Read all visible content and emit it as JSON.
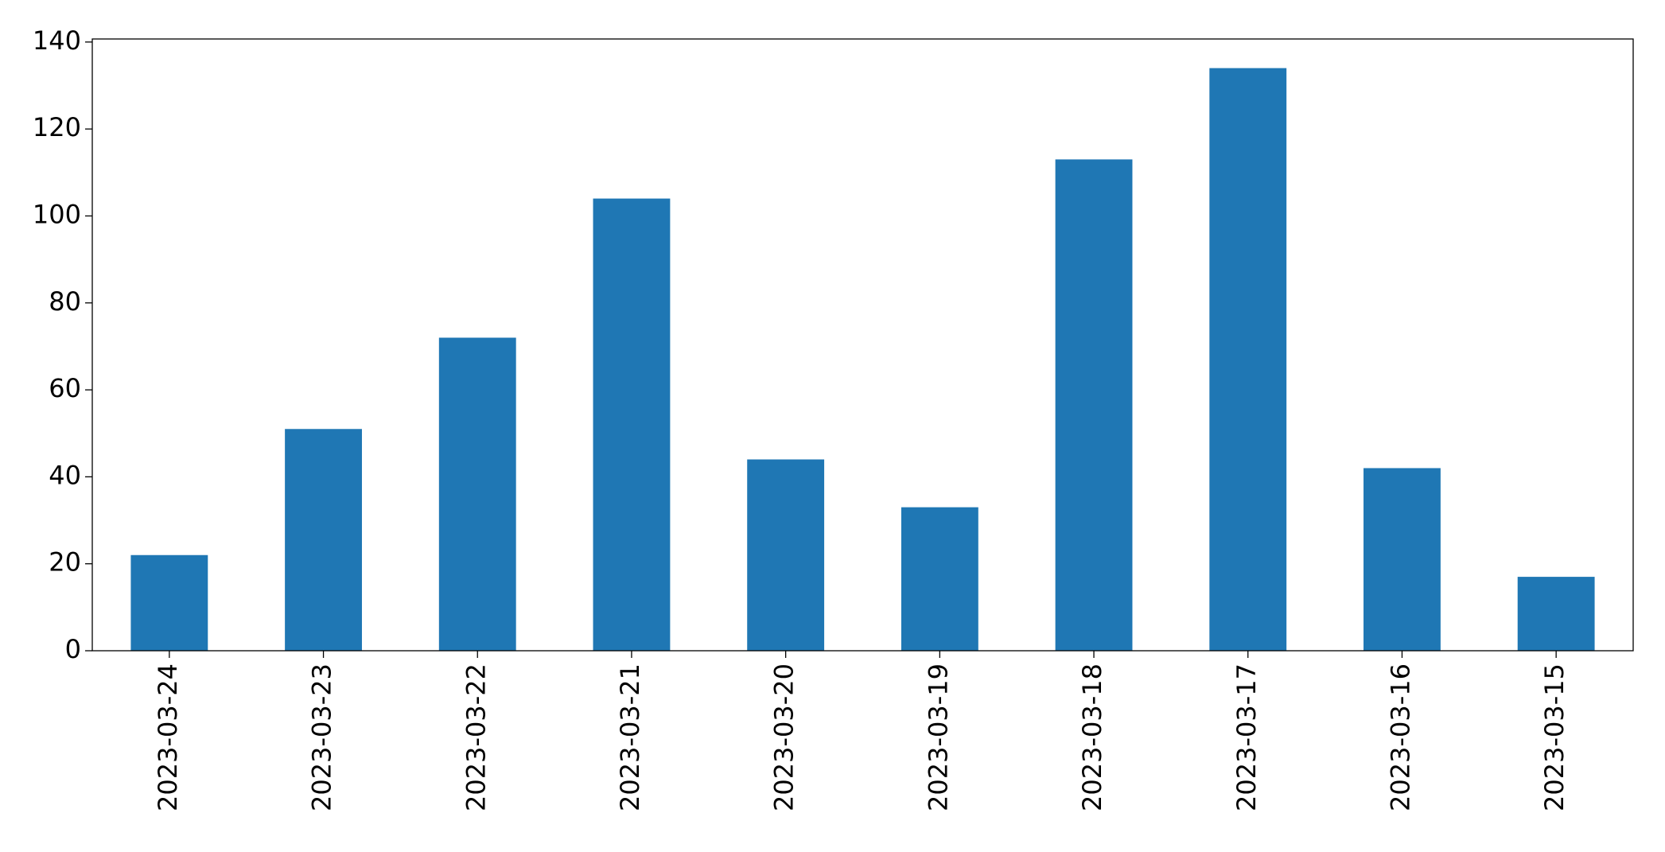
{
  "chart_data": {
    "type": "bar",
    "categories": [
      "2023-03-24",
      "2023-03-23",
      "2023-03-22",
      "2023-03-21",
      "2023-03-20",
      "2023-03-19",
      "2023-03-18",
      "2023-03-17",
      "2023-03-16",
      "2023-03-15"
    ],
    "values": [
      22,
      51,
      72,
      104,
      44,
      33,
      113,
      134,
      42,
      17
    ],
    "color": "#1f77b4",
    "ylim": [
      0,
      140.7
    ],
    "yticks": [
      0,
      20,
      40,
      60,
      80,
      100,
      120,
      140
    ],
    "grid": false
  }
}
